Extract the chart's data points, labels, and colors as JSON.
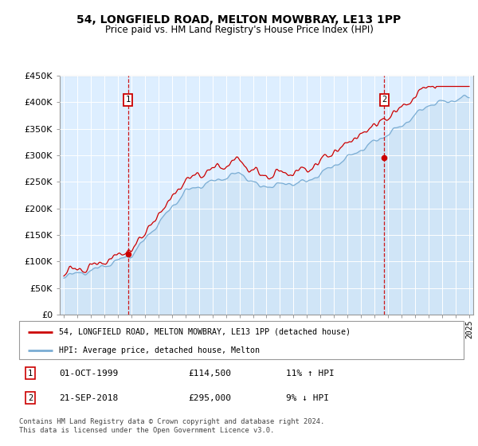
{
  "title": "54, LONGFIELD ROAD, MELTON MOWBRAY, LE13 1PP",
  "subtitle": "Price paid vs. HM Land Registry's House Price Index (HPI)",
  "legend_line1": "54, LONGFIELD ROAD, MELTON MOWBRAY, LE13 1PP (detached house)",
  "legend_line2": "HPI: Average price, detached house, Melton",
  "transaction1_date": "01-OCT-1999",
  "transaction1_price": "£114,500",
  "transaction1_hpi": "11% ↑ HPI",
  "transaction2_date": "21-SEP-2018",
  "transaction2_price": "£295,000",
  "transaction2_hpi": "9% ↓ HPI",
  "footer": "Contains HM Land Registry data © Crown copyright and database right 2024.\nThis data is licensed under the Open Government Licence v3.0.",
  "ylim": [
    0,
    450000
  ],
  "yticks": [
    0,
    50000,
    100000,
    150000,
    200000,
    250000,
    300000,
    350000,
    400000,
    450000
  ],
  "ytick_labels": [
    "£0",
    "£50K",
    "£100K",
    "£150K",
    "£200K",
    "£250K",
    "£300K",
    "£350K",
    "£400K",
    "£450K"
  ],
  "red_color": "#cc0000",
  "blue_color": "#7aadd4",
  "blue_fill_color": "#c5ddf0",
  "bg_color": "#ddeeff",
  "marker_box_color": "#cc0000",
  "transaction1_x": 1999.75,
  "transaction2_x": 2018.72,
  "transaction1_y": 114500,
  "transaction2_y": 295000,
  "xmin": 1995,
  "xmax": 2025
}
